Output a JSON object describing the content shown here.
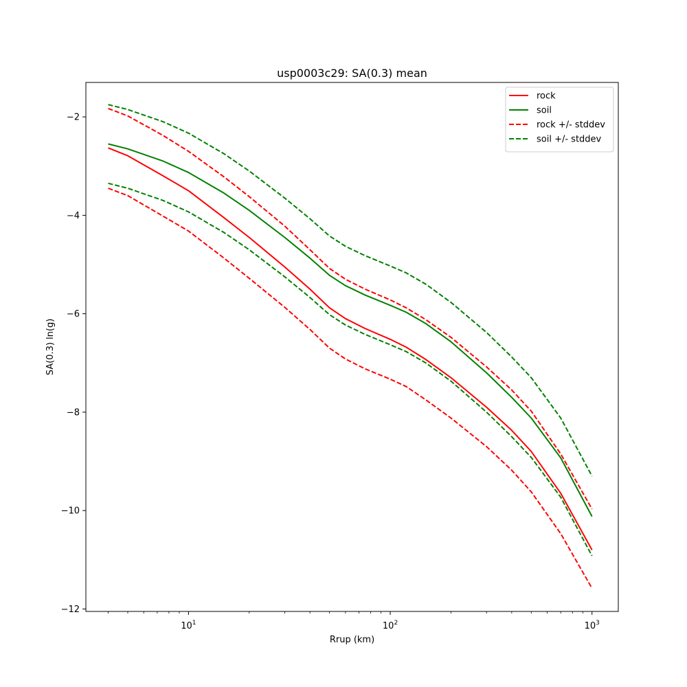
{
  "chart_data": {
    "type": "line",
    "title": "usp0003c29: SA(0.3) mean",
    "xlabel": "Rrup (km)",
    "ylabel": "SA(0.3) ln(g)",
    "xscale": "log",
    "xlim": [
      3.1,
      1350
    ],
    "ylim": [
      -12.05,
      -1.3
    ],
    "xticks": [
      10,
      100,
      1000
    ],
    "xtick_labels": [
      {
        "base": "10",
        "exp": "1"
      },
      {
        "base": "10",
        "exp": "2"
      },
      {
        "base": "10",
        "exp": "3"
      }
    ],
    "yticks": [
      -12,
      -10,
      -8,
      -6,
      -4,
      -2
    ],
    "ytick_labels": [
      "−12",
      "−10",
      "−8",
      "−6",
      "−4",
      "−2"
    ],
    "legend_position": "upper right",
    "grid": false,
    "series": [
      {
        "name": "rock",
        "color": "#ff0000",
        "style": "solid",
        "points": [
          [
            4,
            -2.63
          ],
          [
            5,
            -2.79
          ],
          [
            7.5,
            -3.2
          ],
          [
            10,
            -3.5
          ],
          [
            15,
            -4.05
          ],
          [
            20,
            -4.45
          ],
          [
            30,
            -5.05
          ],
          [
            40,
            -5.5
          ],
          [
            50,
            -5.88
          ],
          [
            60,
            -6.1
          ],
          [
            75,
            -6.3
          ],
          [
            100,
            -6.52
          ],
          [
            120,
            -6.68
          ],
          [
            150,
            -6.93
          ],
          [
            200,
            -7.3
          ],
          [
            300,
            -7.9
          ],
          [
            400,
            -8.37
          ],
          [
            500,
            -8.8
          ],
          [
            700,
            -9.65
          ],
          [
            1000,
            -10.8
          ]
        ]
      },
      {
        "name": "soil",
        "color": "#008000",
        "style": "solid",
        "points": [
          [
            4,
            -2.55
          ],
          [
            5,
            -2.65
          ],
          [
            7.5,
            -2.9
          ],
          [
            10,
            -3.13
          ],
          [
            15,
            -3.55
          ],
          [
            20,
            -3.9
          ],
          [
            30,
            -4.45
          ],
          [
            40,
            -4.87
          ],
          [
            50,
            -5.22
          ],
          [
            60,
            -5.43
          ],
          [
            75,
            -5.62
          ],
          [
            100,
            -5.83
          ],
          [
            120,
            -5.97
          ],
          [
            150,
            -6.2
          ],
          [
            200,
            -6.57
          ],
          [
            300,
            -7.2
          ],
          [
            400,
            -7.7
          ],
          [
            500,
            -8.12
          ],
          [
            700,
            -8.93
          ],
          [
            1000,
            -10.12
          ]
        ]
      },
      {
        "name": "rock +/- stddev",
        "color": "#ff0000",
        "style": "dashed",
        "group": "rock-upper",
        "points": [
          [
            4,
            -1.83
          ],
          [
            5,
            -1.98
          ],
          [
            7.5,
            -2.38
          ],
          [
            10,
            -2.7
          ],
          [
            15,
            -3.22
          ],
          [
            20,
            -3.62
          ],
          [
            30,
            -4.22
          ],
          [
            40,
            -4.7
          ],
          [
            50,
            -5.08
          ],
          [
            60,
            -5.3
          ],
          [
            75,
            -5.5
          ],
          [
            100,
            -5.72
          ],
          [
            120,
            -5.88
          ],
          [
            150,
            -6.12
          ],
          [
            200,
            -6.48
          ],
          [
            300,
            -7.08
          ],
          [
            400,
            -7.55
          ],
          [
            500,
            -7.98
          ],
          [
            700,
            -8.85
          ],
          [
            1000,
            -9.97
          ]
        ]
      },
      {
        "name": "",
        "color": "#ff0000",
        "style": "dashed",
        "group": "rock-lower",
        "points": [
          [
            4,
            -3.45
          ],
          [
            5,
            -3.6
          ],
          [
            7.5,
            -4.02
          ],
          [
            10,
            -4.32
          ],
          [
            15,
            -4.87
          ],
          [
            20,
            -5.28
          ],
          [
            30,
            -5.87
          ],
          [
            40,
            -6.32
          ],
          [
            50,
            -6.7
          ],
          [
            60,
            -6.92
          ],
          [
            75,
            -7.12
          ],
          [
            100,
            -7.33
          ],
          [
            120,
            -7.48
          ],
          [
            150,
            -7.75
          ],
          [
            200,
            -8.12
          ],
          [
            300,
            -8.7
          ],
          [
            400,
            -9.18
          ],
          [
            500,
            -9.62
          ],
          [
            700,
            -10.47
          ],
          [
            1000,
            -11.58
          ]
        ]
      },
      {
        "name": "soil +/- stddev",
        "color": "#008000",
        "style": "dashed",
        "group": "soil-upper",
        "points": [
          [
            4,
            -1.75
          ],
          [
            5,
            -1.85
          ],
          [
            7.5,
            -2.1
          ],
          [
            10,
            -2.33
          ],
          [
            15,
            -2.75
          ],
          [
            20,
            -3.1
          ],
          [
            30,
            -3.65
          ],
          [
            40,
            -4.07
          ],
          [
            50,
            -4.42
          ],
          [
            60,
            -4.63
          ],
          [
            75,
            -4.82
          ],
          [
            100,
            -5.03
          ],
          [
            120,
            -5.17
          ],
          [
            150,
            -5.4
          ],
          [
            200,
            -5.77
          ],
          [
            300,
            -6.38
          ],
          [
            400,
            -6.88
          ],
          [
            500,
            -7.3
          ],
          [
            700,
            -8.12
          ],
          [
            1000,
            -9.3
          ]
        ]
      },
      {
        "name": "",
        "color": "#008000",
        "style": "dashed",
        "group": "soil-lower",
        "points": [
          [
            4,
            -3.35
          ],
          [
            5,
            -3.45
          ],
          [
            7.5,
            -3.7
          ],
          [
            10,
            -3.93
          ],
          [
            15,
            -4.35
          ],
          [
            20,
            -4.7
          ],
          [
            30,
            -5.25
          ],
          [
            40,
            -5.67
          ],
          [
            50,
            -6.02
          ],
          [
            60,
            -6.23
          ],
          [
            75,
            -6.42
          ],
          [
            100,
            -6.63
          ],
          [
            120,
            -6.77
          ],
          [
            150,
            -7.0
          ],
          [
            200,
            -7.37
          ],
          [
            300,
            -8.0
          ],
          [
            400,
            -8.5
          ],
          [
            500,
            -8.92
          ],
          [
            700,
            -9.73
          ],
          [
            1000,
            -10.92
          ]
        ]
      }
    ],
    "legend": [
      {
        "label": "rock",
        "color": "#ff0000",
        "style": "solid"
      },
      {
        "label": "soil",
        "color": "#008000",
        "style": "solid"
      },
      {
        "label": "rock +/- stddev",
        "color": "#ff0000",
        "style": "dashed"
      },
      {
        "label": "soil +/- stddev",
        "color": "#008000",
        "style": "dashed"
      }
    ]
  }
}
